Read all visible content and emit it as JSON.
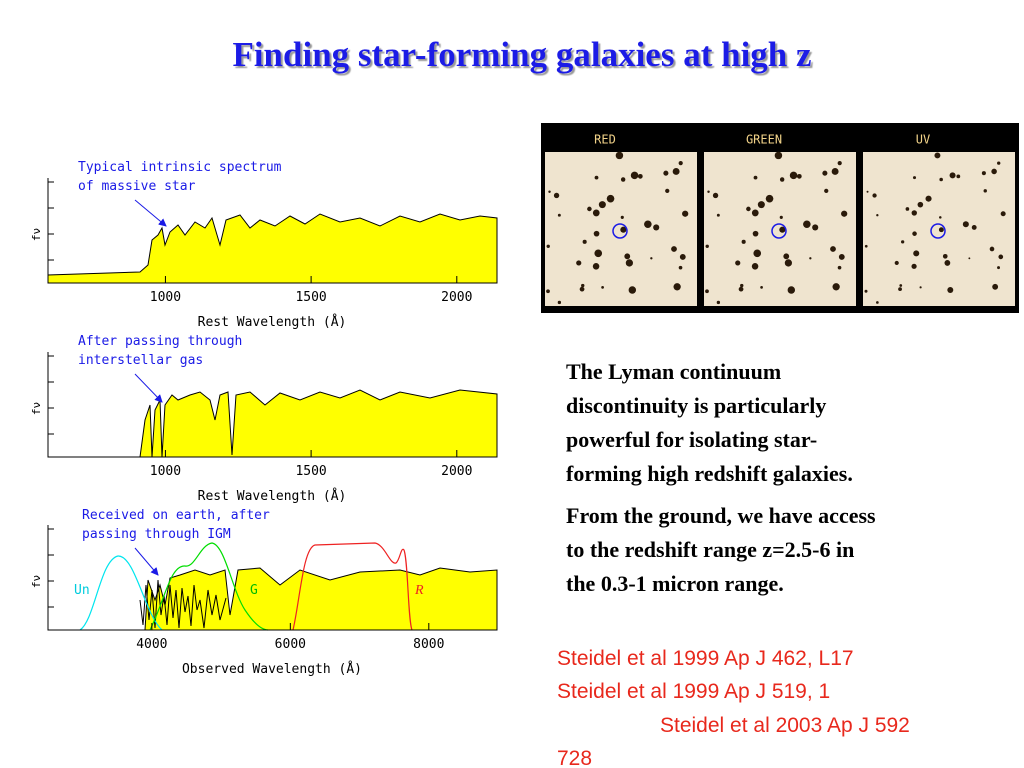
{
  "title": "Finding star-forming galaxies at high z",
  "panels": [
    {
      "annotation": [
        "Typical intrinsic spectrum",
        "of massive star"
      ],
      "y_label": "fν",
      "x_label": "Rest Wavelength (Å)",
      "xlim": [
        597,
        2138
      ],
      "xticks": [
        1000,
        1500,
        2000
      ]
    },
    {
      "annotation": [
        "After passing through",
        "interstellar gas"
      ],
      "y_label": "fν",
      "x_label": "Rest Wavelength (Å)",
      "xlim": [
        597,
        2138
      ],
      "xticks": [
        1000,
        1500,
        2000
      ]
    },
    {
      "annotation": [
        "Received on earth, after",
        "passing through IGM"
      ],
      "y_label": "fν",
      "x_label": "Observed Wavelength (Å)",
      "xlim": [
        2500,
        8985
      ],
      "xticks": [
        4000,
        6000,
        8000
      ],
      "filters": [
        "Un",
        "G",
        "R"
      ]
    }
  ],
  "image": {
    "labels": [
      "RED",
      "GREEN",
      "UV"
    ]
  },
  "paragraphs": [
    [
      "The Lyman continuum",
      "discontinuity is particularly",
      "powerful for isolating star-",
      "forming high redshift galaxies."
    ],
    [
      "From the ground, we have access",
      "to the redshift range z=2.5-6 in",
      "the 0.3-1 micron range."
    ]
  ],
  "references": [
    "Steidel et al 1999 Ap J 462, L17",
    "Steidel et al 1999 Ap J 519, 1",
    "Steidel et al 2003 Ap J 592",
    "728"
  ]
}
